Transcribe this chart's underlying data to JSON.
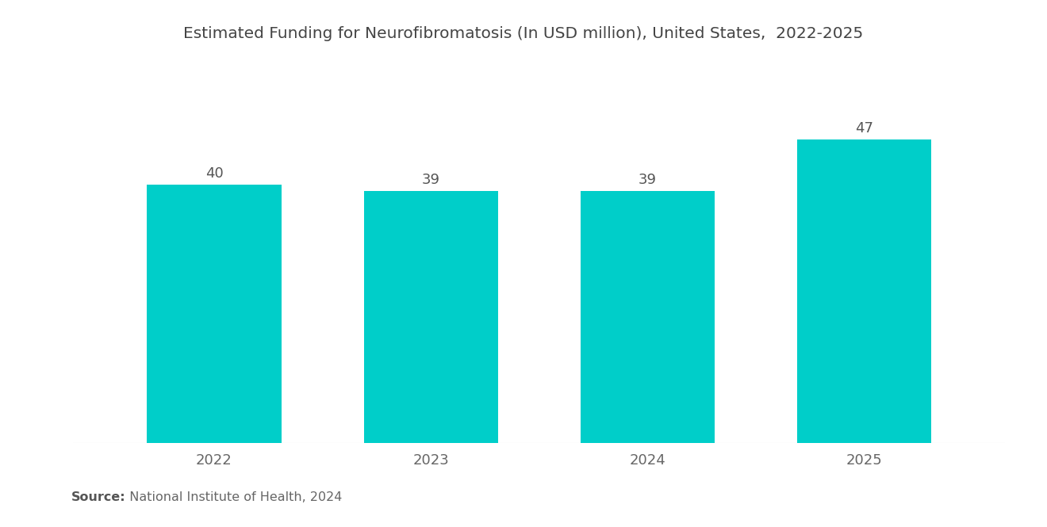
{
  "title": "Estimated Funding for Neurofibromatosis (In USD million), United States,  2022-2025",
  "categories": [
    "2022",
    "2023",
    "2024",
    "2025"
  ],
  "values": [
    40,
    39,
    39,
    47
  ],
  "bar_color": "#00CEC9",
  "background_color": "#ffffff",
  "title_fontsize": 14.5,
  "label_fontsize": 13,
  "tick_fontsize": 13,
  "source_bold": "Source:",
  "source_normal": "  National Institute of Health, 2024",
  "ylim": [
    0,
    58
  ],
  "bar_width": 0.62
}
